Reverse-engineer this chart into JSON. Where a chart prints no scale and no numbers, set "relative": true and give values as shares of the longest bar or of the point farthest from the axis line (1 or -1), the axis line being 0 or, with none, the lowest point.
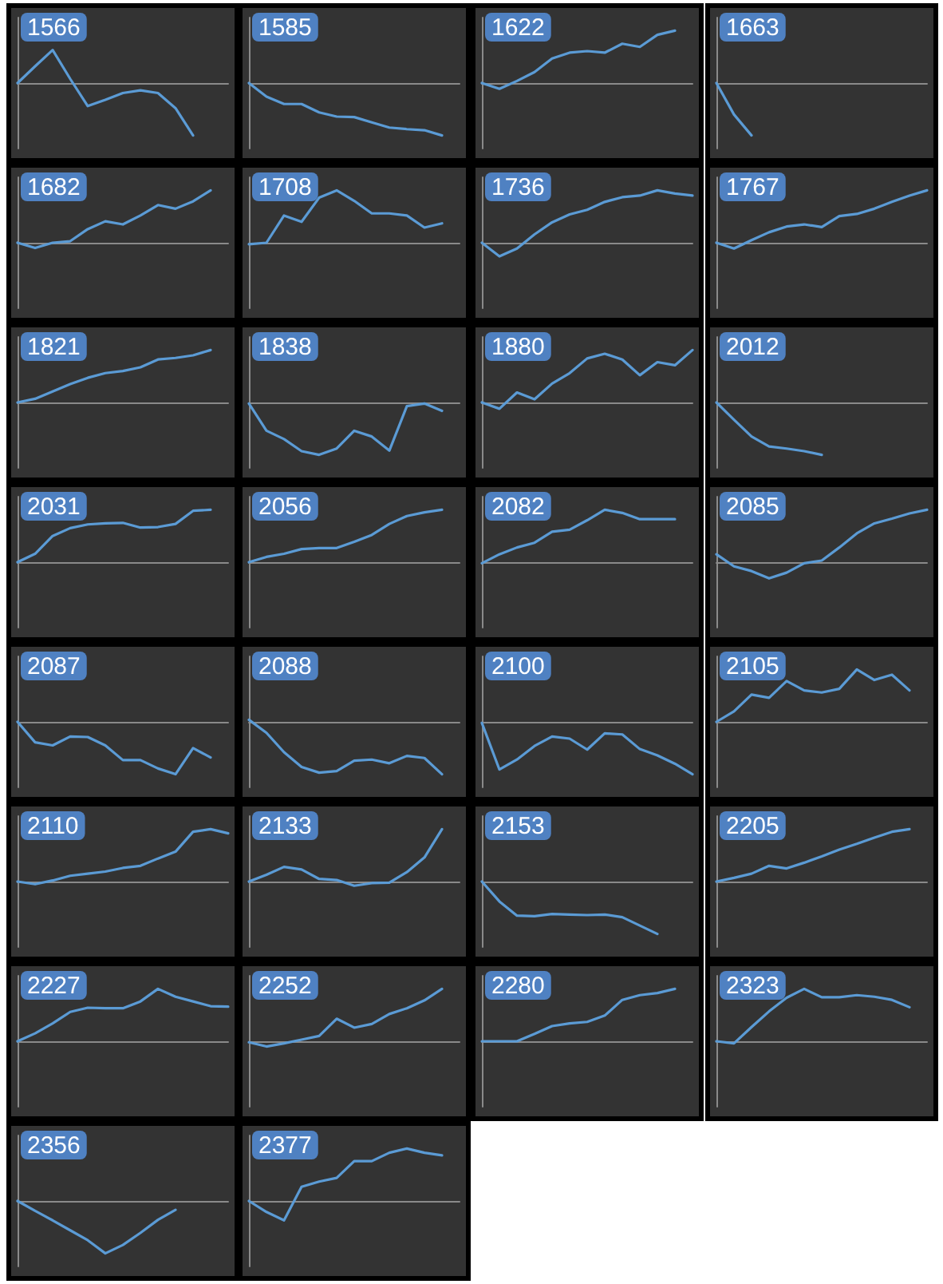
{
  "chart_data": [
    {
      "type": "line",
      "title": "1566",
      "relative": true,
      "color": "#5b9bd5",
      "categories": [
        null,
        null,
        null,
        null,
        null,
        null,
        null,
        null,
        null,
        null,
        null,
        null,
        null
      ],
      "values": [
        0,
        0.32,
        0.63,
        0.08,
        -0.44,
        -0.32,
        -0.19,
        -0.14,
        -0.19,
        -0.48,
        -1,
        null,
        null
      ]
    },
    {
      "type": "line",
      "title": "1585",
      "relative": true,
      "color": "#5b9bd5",
      "categories": [
        null,
        null,
        null,
        null,
        null,
        null,
        null,
        null,
        null,
        null,
        null,
        null,
        null
      ],
      "values": [
        0,
        -0.26,
        -0.4,
        -0.4,
        -0.56,
        -0.64,
        -0.65,
        -0.75,
        -0.85,
        -0.88,
        -0.9,
        -1,
        null
      ]
    },
    {
      "type": "line",
      "title": "1622",
      "relative": true,
      "color": "#5b9bd5",
      "categories": [
        null,
        null,
        null,
        null,
        null,
        null,
        null,
        null,
        null,
        null,
        null,
        null,
        null
      ],
      "values": [
        0,
        -0.11,
        0.04,
        0.21,
        0.47,
        0.58,
        0.61,
        0.58,
        0.75,
        0.69,
        0.92,
        1,
        null
      ]
    },
    {
      "type": "line",
      "title": "1663",
      "relative": true,
      "color": "#5b9bd5",
      "categories": [
        null,
        null,
        null,
        null,
        null,
        null,
        null,
        null,
        null,
        null,
        null,
        null,
        null
      ],
      "values": [
        0,
        -0.6,
        -1,
        null,
        null,
        null,
        null,
        null,
        null,
        null,
        null,
        null,
        null
      ]
    },
    {
      "type": "line",
      "title": "1682",
      "relative": true,
      "color": "#5b9bd5",
      "categories": [
        null,
        null,
        null,
        null,
        null,
        null,
        null,
        null,
        null,
        null,
        null,
        null,
        null
      ],
      "values": [
        0,
        -0.1,
        0,
        0.03,
        0.26,
        0.41,
        0.35,
        0.52,
        0.72,
        0.65,
        0.79,
        1,
        null
      ]
    },
    {
      "type": "line",
      "title": "1708",
      "relative": true,
      "color": "#5b9bd5",
      "categories": [
        null,
        null,
        null,
        null,
        null,
        null,
        null,
        null,
        null,
        null,
        null,
        null,
        null
      ],
      "values": [
        -0.03,
        0,
        0.52,
        0.4,
        0.86,
        1,
        0.8,
        0.56,
        0.56,
        0.52,
        0.29,
        0.37,
        null
      ]
    },
    {
      "type": "line",
      "title": "1736",
      "relative": true,
      "color": "#5b9bd5",
      "categories": [
        null,
        null,
        null,
        null,
        null,
        null,
        null,
        null,
        null,
        null,
        null,
        null,
        null
      ],
      "values": [
        0,
        -0.26,
        -0.11,
        0.16,
        0.39,
        0.54,
        0.63,
        0.78,
        0.87,
        0.9,
        1,
        0.94,
        0.9
      ]
    },
    {
      "type": "line",
      "title": "1767",
      "relative": true,
      "color": "#5b9bd5",
      "categories": [
        null,
        null,
        null,
        null,
        null,
        null,
        null,
        null,
        null,
        null,
        null,
        null,
        null
      ],
      "values": [
        0,
        -0.11,
        0.05,
        0.2,
        0.31,
        0.35,
        0.3,
        0.51,
        0.55,
        0.65,
        0.78,
        0.9,
        1
      ]
    },
    {
      "type": "line",
      "title": "1821",
      "relative": true,
      "color": "#5b9bd5",
      "categories": [
        null,
        null,
        null,
        null,
        null,
        null,
        null,
        null,
        null,
        null,
        null,
        null,
        null
      ],
      "values": [
        0,
        0.07,
        0.21,
        0.35,
        0.47,
        0.56,
        0.6,
        0.67,
        0.82,
        0.85,
        0.9,
        1,
        null
      ]
    },
    {
      "type": "line",
      "title": "1838",
      "relative": true,
      "color": "#5b9bd5",
      "categories": [
        null,
        null,
        null,
        null,
        null,
        null,
        null,
        null,
        null,
        null,
        null,
        null,
        null
      ],
      "values": [
        -0.02,
        -0.54,
        -0.7,
        -0.93,
        -1,
        -0.88,
        -0.54,
        -0.65,
        -0.92,
        -0.07,
        -0.02,
        -0.16,
        null
      ]
    },
    {
      "type": "line",
      "title": "1880",
      "relative": true,
      "color": "#5b9bd5",
      "categories": [
        null,
        null,
        null,
        null,
        null,
        null,
        null,
        null,
        null,
        null,
        null,
        null,
        null
      ],
      "values": [
        0,
        -0.12,
        0.19,
        0.06,
        0.36,
        0.56,
        0.84,
        0.93,
        0.82,
        0.52,
        0.77,
        0.71,
        1
      ]
    },
    {
      "type": "line",
      "title": "2012",
      "relative": true,
      "color": "#5b9bd5",
      "categories": [
        null,
        null,
        null,
        null,
        null,
        null,
        null,
        null,
        null,
        null,
        null,
        null,
        null
      ],
      "values": [
        0,
        -0.33,
        -0.65,
        -0.84,
        -0.88,
        -0.93,
        -1,
        null,
        null,
        null,
        null,
        null,
        null
      ]
    },
    {
      "type": "line",
      "title": "2031",
      "relative": true,
      "color": "#5b9bd5",
      "categories": [
        null,
        null,
        null,
        null,
        null,
        null,
        null,
        null,
        null,
        null,
        null,
        null,
        null
      ],
      "values": [
        0,
        0.16,
        0.5,
        0.65,
        0.72,
        0.74,
        0.75,
        0.66,
        0.67,
        0.73,
        0.98,
        1,
        null
      ]
    },
    {
      "type": "line",
      "title": "2056",
      "relative": true,
      "color": "#5b9bd5",
      "categories": [
        null,
        null,
        null,
        null,
        null,
        null,
        null,
        null,
        null,
        null,
        null,
        null,
        null
      ],
      "values": [
        0,
        0.1,
        0.16,
        0.25,
        0.27,
        0.27,
        0.39,
        0.52,
        0.73,
        0.88,
        0.95,
        1,
        null
      ]
    },
    {
      "type": "line",
      "title": "2082",
      "relative": true,
      "color": "#5b9bd5",
      "categories": [
        null,
        null,
        null,
        null,
        null,
        null,
        null,
        null,
        null,
        null,
        null,
        null,
        null
      ],
      "values": [
        -0.02,
        0.15,
        0.28,
        0.37,
        0.58,
        0.62,
        0.8,
        1,
        0.94,
        0.82,
        0.82,
        0.82,
        null
      ]
    },
    {
      "type": "line",
      "title": "2085",
      "relative": true,
      "color": "#5b9bd5",
      "categories": [
        null,
        null,
        null,
        null,
        null,
        null,
        null,
        null,
        null,
        null,
        null,
        null,
        null
      ],
      "values": [
        0.15,
        -0.08,
        -0.17,
        -0.31,
        -0.2,
        -0.02,
        0.03,
        0.28,
        0.55,
        0.74,
        0.83,
        0.93,
        1
      ]
    },
    {
      "type": "line",
      "title": "2087",
      "relative": true,
      "color": "#5b9bd5",
      "categories": [
        null,
        null,
        null,
        null,
        null,
        null,
        null,
        null,
        null,
        null,
        null,
        null,
        null
      ],
      "values": [
        0,
        -0.39,
        -0.45,
        -0.28,
        -0.29,
        -0.45,
        -0.73,
        -0.73,
        -0.89,
        -1,
        -0.5,
        -0.68,
        null
      ]
    },
    {
      "type": "line",
      "title": "2088",
      "relative": true,
      "color": "#5b9bd5",
      "categories": [
        null,
        null,
        null,
        null,
        null,
        null,
        null,
        null,
        null,
        null,
        null,
        null,
        null
      ],
      "values": [
        0.04,
        -0.21,
        -0.58,
        -0.86,
        -0.97,
        -0.94,
        -0.74,
        -0.72,
        -0.79,
        -0.65,
        -0.69,
        -1,
        null
      ]
    },
    {
      "type": "line",
      "title": "2100",
      "relative": true,
      "color": "#5b9bd5",
      "categories": [
        null,
        null,
        null,
        null,
        null,
        null,
        null,
        null,
        null,
        null,
        null,
        null,
        null
      ],
      "values": [
        -0.02,
        -0.91,
        -0.72,
        -0.46,
        -0.28,
        -0.32,
        -0.53,
        -0.22,
        -0.24,
        -0.52,
        -0.64,
        -0.8,
        -1
      ]
    },
    {
      "type": "line",
      "title": "2105",
      "relative": true,
      "color": "#5b9bd5",
      "categories": [
        null,
        null,
        null,
        null,
        null,
        null,
        null,
        null,
        null,
        null,
        null,
        null,
        null
      ],
      "values": [
        0,
        0.2,
        0.52,
        0.46,
        0.78,
        0.6,
        0.56,
        0.63,
        1,
        0.8,
        0.9,
        0.6,
        null
      ]
    },
    {
      "type": "line",
      "title": "2110",
      "relative": true,
      "color": "#5b9bd5",
      "categories": [
        null,
        null,
        null,
        null,
        null,
        null,
        null,
        null,
        null,
        null,
        null,
        null,
        null
      ],
      "values": [
        0,
        -0.05,
        0.02,
        0.11,
        0.15,
        0.19,
        0.26,
        0.3,
        0.44,
        0.57,
        0.95,
        1,
        0.92
      ]
    },
    {
      "type": "line",
      "title": "2133",
      "relative": true,
      "color": "#5b9bd5",
      "categories": [
        null,
        null,
        null,
        null,
        null,
        null,
        null,
        null,
        null,
        null,
        null,
        null,
        null
      ],
      "values": [
        0,
        0.13,
        0.28,
        0.23,
        0.05,
        0.03,
        -0.08,
        -0.03,
        -0.02,
        0.18,
        0.46,
        1,
        null
      ]
    },
    {
      "type": "line",
      "title": "2153",
      "relative": true,
      "color": "#5b9bd5",
      "categories": [
        null,
        null,
        null,
        null,
        null,
        null,
        null,
        null,
        null,
        null,
        null,
        null,
        null
      ],
      "values": [
        0,
        -0.38,
        -0.65,
        -0.66,
        -0.62,
        -0.63,
        -0.64,
        -0.63,
        -0.68,
        -0.84,
        -1,
        null,
        null
      ]
    },
    {
      "type": "line",
      "title": "2205",
      "relative": true,
      "color": "#5b9bd5",
      "categories": [
        null,
        null,
        null,
        null,
        null,
        null,
        null,
        null,
        null,
        null,
        null,
        null,
        null
      ],
      "values": [
        0,
        0.07,
        0.15,
        0.3,
        0.25,
        0.36,
        0.48,
        0.61,
        0.72,
        0.84,
        0.95,
        1,
        null
      ]
    },
    {
      "type": "line",
      "title": "2227",
      "relative": true,
      "color": "#5b9bd5",
      "categories": [
        null,
        null,
        null,
        null,
        null,
        null,
        null,
        null,
        null,
        null,
        null,
        null,
        null
      ],
      "values": [
        0,
        0.15,
        0.34,
        0.56,
        0.64,
        0.63,
        0.63,
        0.76,
        1,
        0.85,
        0.76,
        0.67,
        0.66
      ]
    },
    {
      "type": "line",
      "title": "2252",
      "relative": true,
      "color": "#5b9bd5",
      "categories": [
        null,
        null,
        null,
        null,
        null,
        null,
        null,
        null,
        null,
        null,
        null,
        null,
        null
      ],
      "values": [
        -0.02,
        -0.1,
        -0.04,
        0.03,
        0.1,
        0.43,
        0.26,
        0.33,
        0.52,
        0.63,
        0.78,
        1,
        null
      ]
    },
    {
      "type": "line",
      "title": "2280",
      "relative": true,
      "color": "#5b9bd5",
      "categories": [
        null,
        null,
        null,
        null,
        null,
        null,
        null,
        null,
        null,
        null,
        null,
        null,
        null
      ],
      "values": [
        0,
        0,
        0,
        0.14,
        0.29,
        0.34,
        0.37,
        0.49,
        0.79,
        0.88,
        0.92,
        1,
        null
      ]
    },
    {
      "type": "line",
      "title": "2323",
      "relative": true,
      "color": "#5b9bd5",
      "categories": [
        null,
        null,
        null,
        null,
        null,
        null,
        null,
        null,
        null,
        null,
        null,
        null,
        null
      ],
      "values": [
        0,
        -0.04,
        0.27,
        0.57,
        0.83,
        1,
        0.84,
        0.84,
        0.88,
        0.85,
        0.79,
        0.65,
        null
      ]
    },
    {
      "type": "line",
      "title": "2356",
      "relative": true,
      "color": "#5b9bd5",
      "categories": [
        null,
        null,
        null,
        null,
        null,
        null,
        null,
        null,
        null,
        null,
        null,
        null,
        null
      ],
      "values": [
        0,
        -0.19,
        -0.37,
        -0.56,
        -0.75,
        -1,
        -0.84,
        -0.61,
        -0.36,
        -0.17,
        null,
        null,
        null
      ]
    },
    {
      "type": "line",
      "title": "2377",
      "relative": true,
      "color": "#5b9bd5",
      "categories": [
        null,
        null,
        null,
        null,
        null,
        null,
        null,
        null,
        null,
        null,
        null,
        null,
        null
      ],
      "values": [
        0,
        -0.21,
        -0.37,
        0.27,
        0.37,
        0.44,
        0.76,
        0.76,
        0.92,
        1,
        0.92,
        0.87,
        null
      ]
    }
  ]
}
